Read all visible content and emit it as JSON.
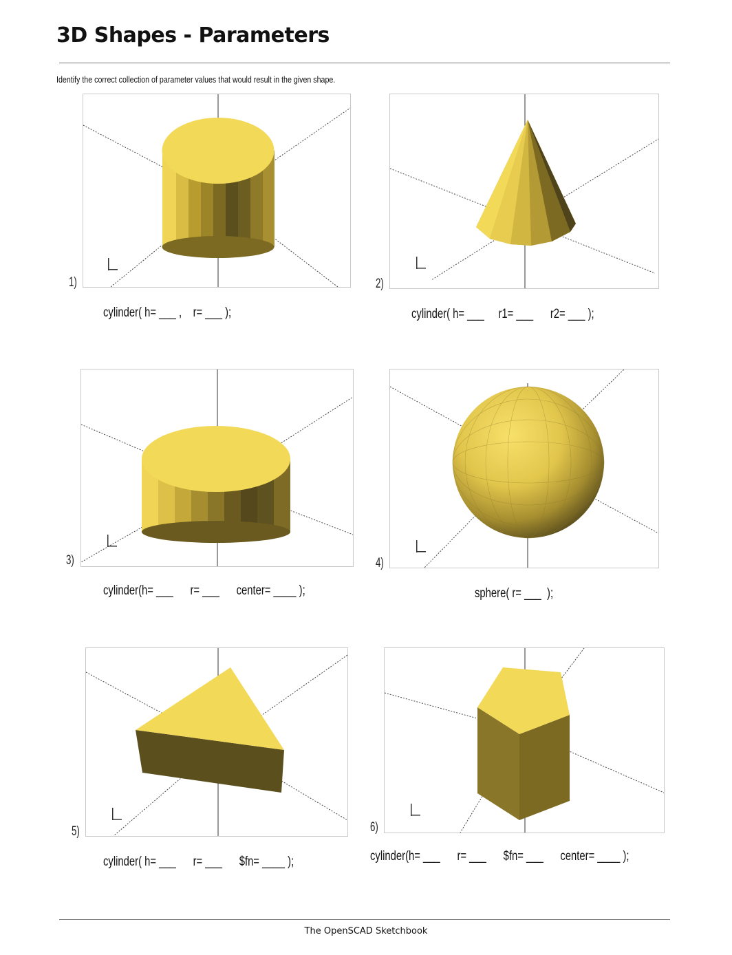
{
  "page": {
    "title": "3D Shapes - Parameters",
    "instruction": "Identify the correct collection of parameter values that would result in the given shape.",
    "footer": "The OpenSCAD Sketchbook"
  },
  "colors": {
    "shape_top": "#f3d958",
    "shape_side_light": "#c9ad38",
    "shape_side_dark": "#5b4f1e",
    "axis": "#333333",
    "frame": "#c8c8c8"
  },
  "problems": [
    {
      "number": "1)",
      "shape": "cylinder",
      "code": "cylinder( h= ___ ,    r= ___ );"
    },
    {
      "number": "2)",
      "shape": "cone",
      "code": "cylinder( h= ___     r1= ___      r2= ___ );"
    },
    {
      "number": "3)",
      "shape": "short-cylinder",
      "code": "cylinder(h= ___      r= ___      center= ____ );"
    },
    {
      "number": "4)",
      "shape": "sphere",
      "code": "sphere( r= ___  );"
    },
    {
      "number": "5)",
      "shape": "triangular-prism",
      "code": "cylinder( h= ___      r= ___      $fn= ____ );"
    },
    {
      "number": "6)",
      "shape": "pentagonal-prism",
      "code": "cylinder(h= ___      r= ___      $fn= ___      center= ____ );"
    }
  ]
}
